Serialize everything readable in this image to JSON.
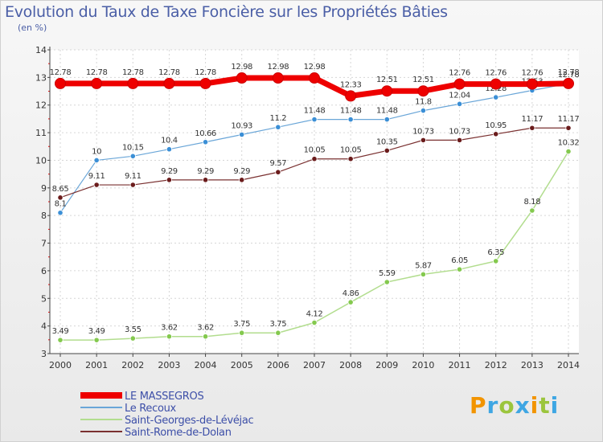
{
  "title": "Evolution du Taux de Taxe Foncière sur les Propriétés Bâties",
  "subtitle": "(en %)",
  "logo": {
    "letters": [
      "P",
      "r",
      "o",
      "x",
      "i",
      "t",
      "i"
    ],
    "colors": [
      "#f29400",
      "#3ea6e3",
      "#9bc53d",
      "#3ea6e3",
      "#f29400",
      "#9bc53d",
      "#3ea6e3"
    ]
  },
  "chart_data": {
    "type": "line",
    "x": [
      "2000",
      "2001",
      "2002",
      "2003",
      "2004",
      "2005",
      "2006",
      "2007",
      "2008",
      "2009",
      "2010",
      "2011",
      "2012",
      "2013",
      "2014"
    ],
    "ylim": [
      3,
      14
    ],
    "yticks": [
      "3",
      "4",
      "5",
      "6",
      "7",
      "8",
      "9",
      "10",
      "11",
      "12",
      "13",
      "14"
    ],
    "grid": true,
    "legend_position": "bottom-left",
    "series": [
      {
        "name": "Le Recoux",
        "color": "#6aa6d8",
        "marker": "#3b8fd6",
        "width": 1.2,
        "values": [
          8.1,
          10,
          10.15,
          10.4,
          10.66,
          10.93,
          11.2,
          11.48,
          11.48,
          11.48,
          11.8,
          12.04,
          12.28,
          12.53,
          12.78
        ],
        "labels": [
          "8.1",
          "10",
          "10.15",
          "10.4",
          "10.66",
          "10.93",
          "11.2",
          "11.48",
          "11.48",
          "11.48",
          "11.8",
          "12.04",
          "12.28",
          "12.53",
          "12.78"
        ]
      },
      {
        "name": "Saint-Rome-de-Dolan",
        "color": "#7a3030",
        "marker": "#6b1c1c",
        "width": 1.2,
        "values": [
          8.65,
          9.11,
          9.11,
          9.29,
          9.29,
          9.29,
          9.57,
          10.05,
          10.05,
          10.35,
          10.73,
          10.73,
          10.95,
          11.17,
          11.17
        ],
        "labels": [
          "8.65",
          "9.11",
          "9.11",
          "9.29",
          "9.29",
          "9.29",
          "9.57",
          "10.05",
          "10.05",
          "10.35",
          "10.73",
          "10.73",
          "10.95",
          "11.17",
          "11.17"
        ]
      },
      {
        "name": "Saint-Georges-de-Lévéjac",
        "color": "#b2dd8e",
        "marker": "#84c94e",
        "width": 1.5,
        "values": [
          3.49,
          3.49,
          3.55,
          3.62,
          3.62,
          3.75,
          3.75,
          4.12,
          4.86,
          5.59,
          5.87,
          6.05,
          6.35,
          8.18,
          10.32
        ],
        "labels": [
          "3.49",
          "3.49",
          "3.55",
          "3.62",
          "3.62",
          "3.75",
          "3.75",
          "4.12",
          "4.86",
          "5.59",
          "5.87",
          "6.05",
          "6.35",
          "8.18",
          "10.32"
        ]
      },
      {
        "name": "LE MASSEGROS",
        "color": "#ee0000",
        "marker": "#ee0000",
        "width": 7,
        "values": [
          12.78,
          12.78,
          12.78,
          12.78,
          12.78,
          12.98,
          12.98,
          12.98,
          12.33,
          12.51,
          12.51,
          12.76,
          12.76,
          12.76,
          12.78
        ],
        "labels": [
          "12.78",
          "12.78",
          "12.78",
          "12.78",
          "12.78",
          "12.98",
          "12.98",
          "12.98",
          "12.33",
          "12.51",
          "12.51",
          "12.76",
          "12.76",
          "12.76",
          "12.78"
        ]
      }
    ],
    "legend": [
      {
        "name": "LE MASSEGROS",
        "color": "#ee0000",
        "width": 8
      },
      {
        "name": "Le Recoux",
        "color": "#6aa6d8",
        "width": 2
      },
      {
        "name": "Saint-Georges-de-Lévéjac",
        "color": "#b2dd8e",
        "width": 2
      },
      {
        "name": "Saint-Rome-de-Dolan",
        "color": "#7a3030",
        "width": 2
      }
    ]
  }
}
